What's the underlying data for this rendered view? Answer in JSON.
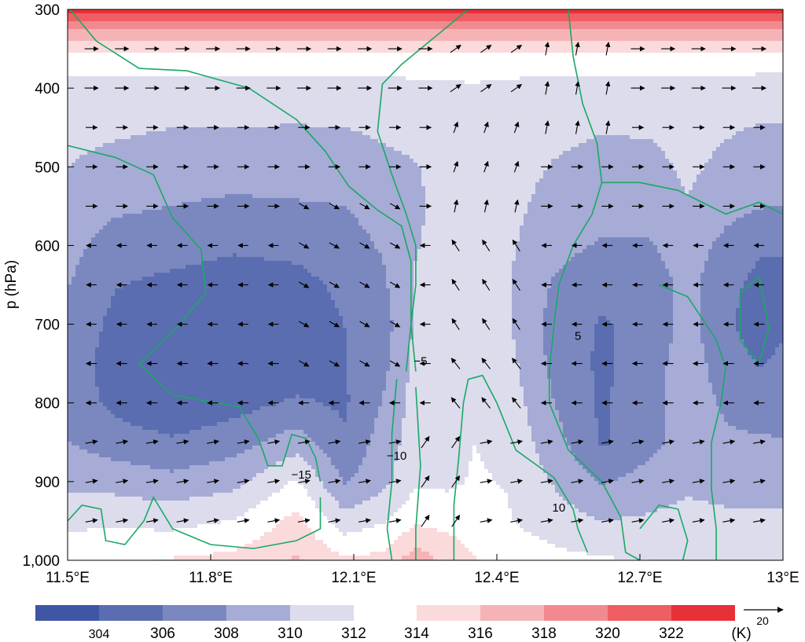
{
  "chart_data": {
    "type": "heatmap",
    "title": "",
    "xlabel": "",
    "ylabel": "p (hPa)",
    "xlim": [
      11.5,
      13.0
    ],
    "ylim": [
      1000,
      300
    ],
    "x_ticks": [
      {
        "value": 11.5,
        "label": "11.5°E"
      },
      {
        "value": 11.8,
        "label": "11.8°E"
      },
      {
        "value": 12.1,
        "label": "12.1°E"
      },
      {
        "value": 12.4,
        "label": "12.4°E"
      },
      {
        "value": 12.7,
        "label": "12.7°E"
      },
      {
        "value": 13.0,
        "label": "13°E"
      }
    ],
    "y_ticks": [
      {
        "value": 300,
        "label": "300"
      },
      {
        "value": 400,
        "label": "400"
      },
      {
        "value": 500,
        "label": "500"
      },
      {
        "value": 600,
        "label": "600"
      },
      {
        "value": 700,
        "label": "700"
      },
      {
        "value": 800,
        "label": "800"
      },
      {
        "value": 900,
        "label": "900"
      },
      {
        "value": 1000,
        "label": "1,000"
      }
    ],
    "shading": {
      "levels": [
        304,
        306,
        308,
        310,
        312,
        314,
        316,
        318,
        320,
        322
      ],
      "labels": [
        "304",
        "306",
        "308",
        "310",
        "312",
        "314",
        "316",
        "318",
        "320",
        "322"
      ],
      "colors": [
        "#3e56a4",
        "#5a6db0",
        "#7b88c0",
        "#a6acd5",
        "#dcdcec",
        "#ffffff",
        "#fbdadc",
        "#f6b3b6",
        "#f18a8e",
        "#ee5e63",
        "#e83038"
      ],
      "unit": "(K)"
    },
    "contours": {
      "color": "#1aa866",
      "labels": [
        {
          "text": "−15",
          "lon": 11.99,
          "p": 896
        },
        {
          "text": "−10",
          "lon": 12.19,
          "p": 872
        },
        {
          "text": "−5",
          "lon": 12.24,
          "p": 752
        },
        {
          "text": "5",
          "lon": 12.57,
          "p": 720
        },
        {
          "text": "10",
          "lon": 12.53,
          "p": 938
        }
      ]
    },
    "vector_reference": {
      "label": "20"
    },
    "field": {
      "profile_levels": [
        300,
        330,
        360,
        400,
        450,
        500,
        550,
        600,
        650,
        700,
        750,
        800,
        850,
        900,
        950,
        1000
      ],
      "profiles": [
        {
          "lon": 11.5,
          "theta": [
            323,
            317,
            313,
            311.5,
            310.5,
            310,
            309.2,
            308.6,
            308.1,
            307.6,
            307.2,
            307.3,
            308,
            309.5,
            311.5,
            313.5
          ]
        },
        {
          "lon": 11.6,
          "theta": [
            323,
            317,
            313,
            311.5,
            310.3,
            309.4,
            308.3,
            307.2,
            306.1,
            305.4,
            305.0,
            305.4,
            307.0,
            309.2,
            311.6,
            313.6
          ]
        },
        {
          "lon": 11.72,
          "theta": [
            323,
            317,
            313,
            311.4,
            310.0,
            309.1,
            308.0,
            306.8,
            305.5,
            304.5,
            304.1,
            304.3,
            306.3,
            308.6,
            311.3,
            314.2
          ]
        },
        {
          "lon": 11.85,
          "theta": [
            323,
            317,
            313,
            311.4,
            310.0,
            309.0,
            307.6,
            306.3,
            305.0,
            304.1,
            304.1,
            305.2,
            307.2,
            309.4,
            312.1,
            314.6
          ]
        },
        {
          "lon": 11.98,
          "theta": [
            323,
            317,
            313,
            311.3,
            309.9,
            309.0,
            307.8,
            306.6,
            305.3,
            304.3,
            304.6,
            306.3,
            309.0,
            312.3,
            314.6,
            316.2
          ]
        },
        {
          "lon": 12.08,
          "theta": [
            323,
            317,
            313,
            311.3,
            310.0,
            309.0,
            308.0,
            307.3,
            306.5,
            306.0,
            305.9,
            305.7,
            306.3,
            307.8,
            310.8,
            314.3
          ]
        },
        {
          "lon": 12.16,
          "theta": [
            323,
            317,
            313,
            311.4,
            310.3,
            309.5,
            308.6,
            308.2,
            307.6,
            307.0,
            307.3,
            308.1,
            308.8,
            309.4,
            311.8,
            314.6
          ]
        },
        {
          "lon": 12.23,
          "theta": [
            323,
            317,
            313,
            311.6,
            310.6,
            309.9,
            309.6,
            309.8,
            310.3,
            310.3,
            310.6,
            310.9,
            311.0,
            311.6,
            313.6,
            317.2
          ]
        },
        {
          "lon": 12.3,
          "theta": [
            323,
            317,
            313,
            311.7,
            311.2,
            310.8,
            310.8,
            311.2,
            311.7,
            311.9,
            311.9,
            311.7,
            310.9,
            311.6,
            313.3,
            315.4
          ]
        },
        {
          "lon": 12.35,
          "theta": [
            323,
            317,
            313,
            311.8,
            311.6,
            311.5,
            311.6,
            311.8,
            312.0,
            312.0,
            312.0,
            312.0,
            312.0,
            312.2,
            312.8,
            314.2
          ]
        },
        {
          "lon": 12.42,
          "theta": [
            323,
            317,
            313,
            311.6,
            311.0,
            310.7,
            310.6,
            310.4,
            310.2,
            310.3,
            310.8,
            311.3,
            311.6,
            311.9,
            312.2,
            313.1
          ]
        },
        {
          "lon": 12.52,
          "theta": [
            323,
            317,
            313,
            311.4,
            310.4,
            309.9,
            309.3,
            308.6,
            307.8,
            307.3,
            307.4,
            308.0,
            308.8,
            309.8,
            311.0,
            312.6
          ]
        },
        {
          "lon": 12.62,
          "theta": [
            323,
            317,
            313,
            311.3,
            310.1,
            309.5,
            308.8,
            307.8,
            306.5,
            305.8,
            305.6,
            305.7,
            305.7,
            307.8,
            310.0,
            312.2
          ]
        },
        {
          "lon": 12.72,
          "theta": [
            323,
            317,
            313,
            311.3,
            310.2,
            309.5,
            308.9,
            307.8,
            306.9,
            306.6,
            307.1,
            307.4,
            307.4,
            308.8,
            310.3,
            312.0
          ]
        },
        {
          "lon": 12.8,
          "theta": [
            323,
            317,
            313,
            311.4,
            310.6,
            310.3,
            309.9,
            309.1,
            308.6,
            308.7,
            309.1,
            309.0,
            308.9,
            309.6,
            310.6,
            311.8
          ]
        },
        {
          "lon": 12.88,
          "theta": [
            323,
            317,
            313,
            311.3,
            310.2,
            309.6,
            308.7,
            307.4,
            306.6,
            306.3,
            306.9,
            307.7,
            308.3,
            309.3,
            310.4,
            311.6
          ]
        },
        {
          "lon": 12.95,
          "theta": [
            323,
            317,
            313,
            311.2,
            309.9,
            309.2,
            308.1,
            306.3,
            305.4,
            305.1,
            305.9,
            307.2,
            308.2,
            309.3,
            310.4,
            311.5
          ]
        },
        {
          "lon": 13.0,
          "theta": [
            323,
            317,
            313,
            311.2,
            309.9,
            309.0,
            308.0,
            306.2,
            305.6,
            305.7,
            306.4,
            307.3,
            308.1,
            309.2,
            310.3,
            311.4
          ]
        }
      ]
    }
  }
}
